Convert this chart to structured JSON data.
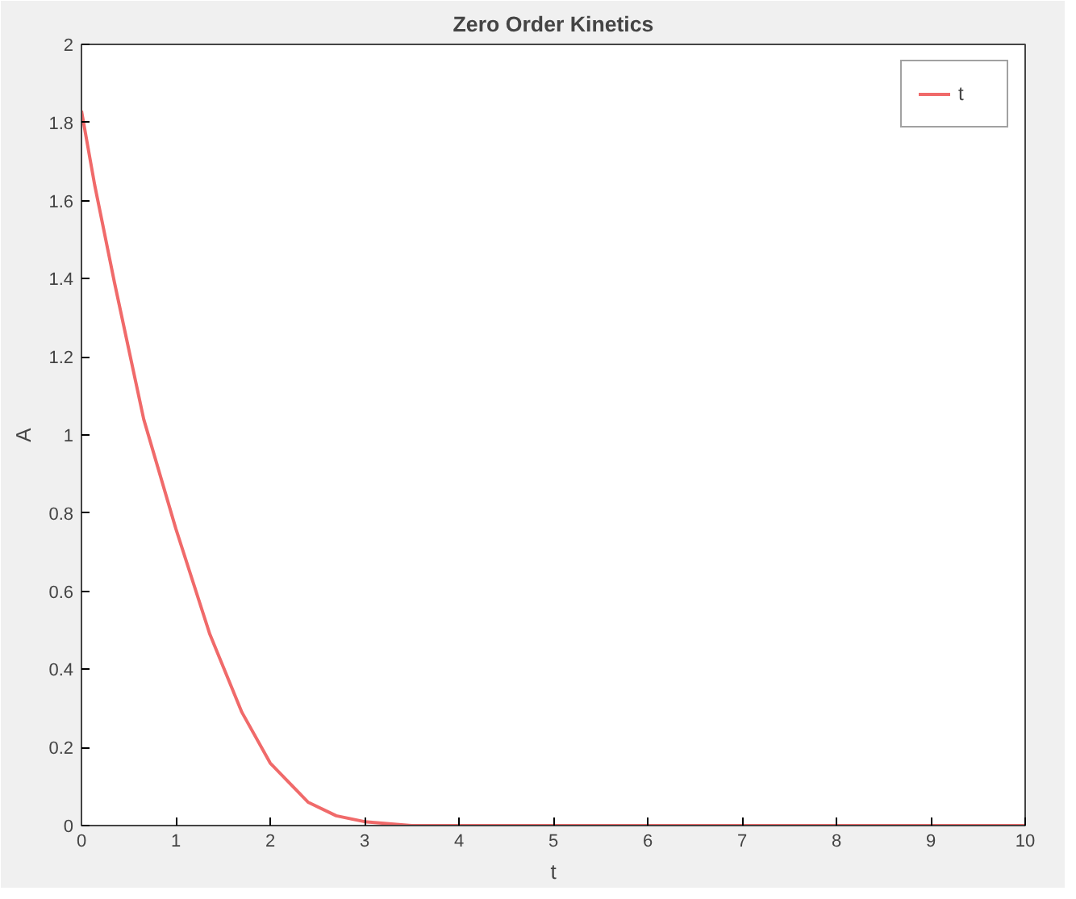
{
  "chart_data": {
    "type": "line",
    "title": "Zero Order Kinetics",
    "xlabel": "t",
    "ylabel": "A",
    "series": [
      {
        "name": "t",
        "color": "#f06a6a",
        "x": [
          0,
          0.14,
          0.35,
          0.66,
          1.0,
          1.36,
          1.7,
          2.0,
          2.4,
          2.7,
          3.0,
          3.5,
          4,
          5,
          6,
          7,
          8,
          9,
          10
        ],
        "values": [
          1.83,
          1.64,
          1.39,
          1.04,
          0.76,
          0.49,
          0.29,
          0.16,
          0.06,
          0.025,
          0.01,
          0,
          0,
          0,
          0,
          0,
          0,
          0,
          0
        ]
      }
    ],
    "xlim": [
      0,
      10
    ],
    "ylim": [
      0,
      2
    ],
    "xticks": [
      0,
      1,
      2,
      3,
      4,
      5,
      6,
      7,
      8,
      9,
      10
    ],
    "yticks": [
      0,
      0.2,
      0.4,
      0.6,
      0.8,
      1,
      1.2,
      1.4,
      1.6,
      1.8,
      2
    ],
    "grid": false,
    "legend": "top right",
    "line_style": "solid"
  }
}
